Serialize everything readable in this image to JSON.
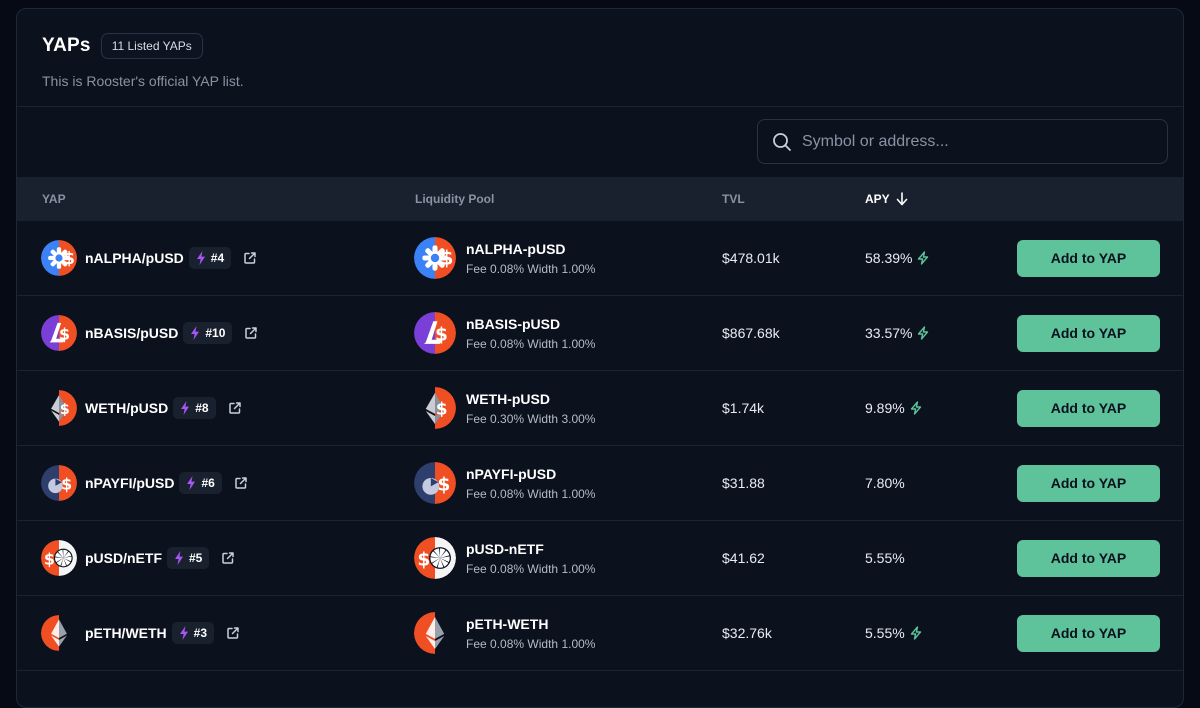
{
  "header": {
    "title": "YAPs",
    "badge": "11 Listed YAPs",
    "subtitle": "This is Rooster's official YAP list."
  },
  "search": {
    "placeholder": "Symbol or address...",
    "icon": "search-icon"
  },
  "table": {
    "columns": {
      "yap": "YAP",
      "pool": "Liquidity Pool",
      "tvl": "TVL",
      "apy": "APY"
    },
    "sort": {
      "column": "APY",
      "direction": "descending"
    },
    "rows": [
      {
        "yap": "nALPHA/pUSD",
        "rank": "#4",
        "pool": "nALPHA-pUSD",
        "fee_label": "Fee",
        "fee": "0.08%",
        "width_label": "Width",
        "width": "1.00%",
        "tvl": "$478.01k",
        "apy": "58.39%",
        "boosted": true,
        "action": "Add to YAP",
        "token": "nalpha",
        "left_color": "#3b82f6",
        "right_color": "#f04e23"
      },
      {
        "yap": "nBASIS/pUSD",
        "rank": "#10",
        "pool": "nBASIS-pUSD",
        "fee_label": "Fee",
        "fee": "0.08%",
        "width_label": "Width",
        "width": "1.00%",
        "tvl": "$867.68k",
        "apy": "33.57%",
        "boosted": true,
        "action": "Add to YAP",
        "token": "nbasis",
        "left_color": "#7a3fd6",
        "right_color": "#f04e23"
      },
      {
        "yap": "WETH/pUSD",
        "rank": "#8",
        "pool": "WETH-pUSD",
        "fee_label": "Fee",
        "fee": "0.30%",
        "width_label": "Width",
        "width": "3.00%",
        "tvl": "$1.74k",
        "apy": "9.89%",
        "boosted": true,
        "action": "Add to YAP",
        "token": "weth",
        "left_color": "#0b111d",
        "right_color": "#f04e23"
      },
      {
        "yap": "nPAYFI/pUSD",
        "rank": "#6",
        "pool": "nPAYFI-pUSD",
        "fee_label": "Fee",
        "fee": "0.08%",
        "width_label": "Width",
        "width": "1.00%",
        "tvl": "$31.88",
        "apy": "7.80%",
        "boosted": false,
        "action": "Add to YAP",
        "token": "npayfi",
        "left_color": "#2e3f6e",
        "right_color": "#f04e23"
      },
      {
        "yap": "pUSD/nETF",
        "rank": "#5",
        "pool": "pUSD-nETF",
        "fee_label": "Fee",
        "fee": "0.08%",
        "width_label": "Width",
        "width": "1.00%",
        "tvl": "$41.62",
        "apy": "5.55%",
        "boosted": false,
        "action": "Add to YAP",
        "token": "netf",
        "left_color": "#f04e23",
        "right_color": "#f5f5f5"
      },
      {
        "yap": "pETH/WETH",
        "rank": "#3",
        "pool": "pETH-WETH",
        "fee_label": "Fee",
        "fee": "0.08%",
        "width_label": "Width",
        "width": "1.00%",
        "tvl": "$32.76k",
        "apy": "5.55%",
        "boosted": true,
        "action": "Add to YAP",
        "token": "peth",
        "left_color": "#f04e23",
        "right_color": "#0b111d"
      }
    ]
  },
  "colors": {
    "accent": "#5ec29b",
    "bolt": "#a855f7",
    "boost": "#5ec29b"
  }
}
